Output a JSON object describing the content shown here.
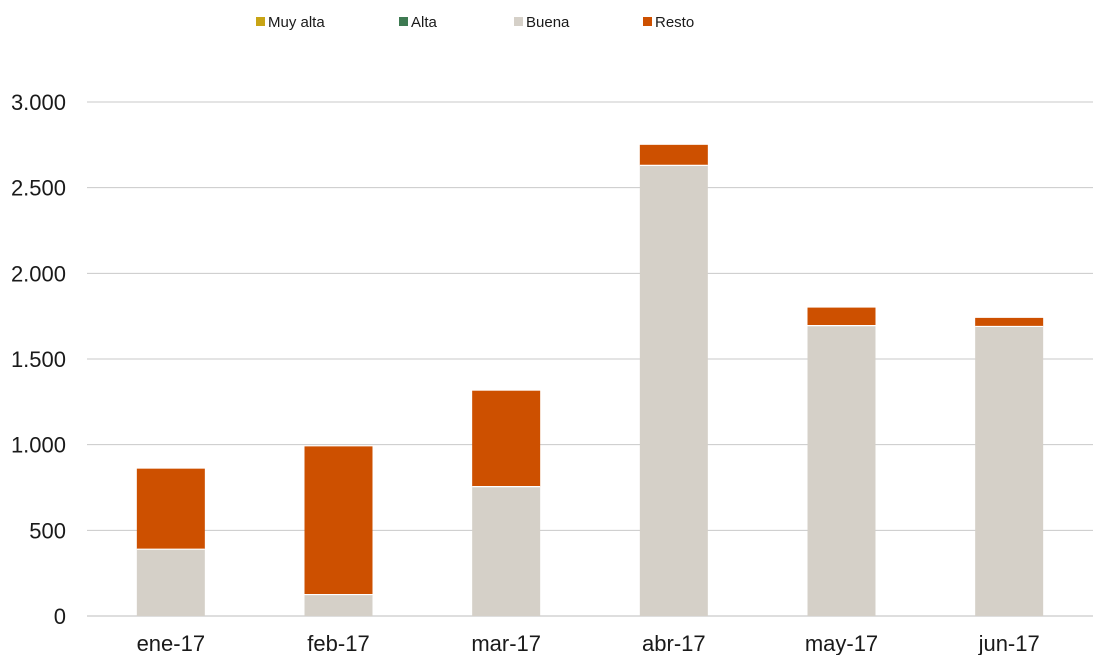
{
  "chart_data": {
    "type": "bar",
    "stacked": true,
    "categories": [
      "ene-17",
      "feb-17",
      "mar-17",
      "abr-17",
      "may-17",
      "jun-17"
    ],
    "series": [
      {
        "name": "Muy alta",
        "color": "#c8a415",
        "values": [
          0,
          0,
          0,
          0,
          0,
          0
        ]
      },
      {
        "name": "Alta",
        "color": "#3e7a52",
        "values": [
          0,
          0,
          0,
          0,
          0,
          0
        ]
      },
      {
        "name": "Buena",
        "color": "#d5d0c8",
        "values": [
          390,
          125,
          755,
          2630,
          1695,
          1690
        ]
      },
      {
        "name": "Resto",
        "color": "#cd5000",
        "values": [
          470,
          865,
          560,
          120,
          105,
          50
        ]
      }
    ],
    "ylim": [
      0,
      3000
    ],
    "yticks": [
      0,
      500,
      1000,
      1500,
      2000,
      2500,
      3000
    ],
    "ytick_labels": [
      "0",
      "500",
      "1.000",
      "1.500",
      "2.000",
      "2.500",
      "3.000"
    ],
    "grid": true,
    "legend_position": "top"
  }
}
